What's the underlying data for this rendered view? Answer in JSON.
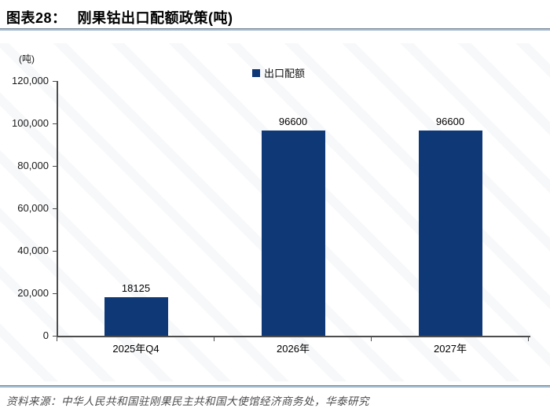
{
  "header": {
    "figure_label": "图表28：",
    "figure_title": "刚果钴出口配额政策(吨)"
  },
  "chart": {
    "unit_label": "(吨)",
    "legend_label": "出口配额"
  },
  "chart_data": {
    "type": "bar",
    "title": "刚果钴出口配额政策(吨)",
    "categories": [
      "2025年Q4",
      "2026年",
      "2027年"
    ],
    "series": [
      {
        "name": "出口配额",
        "values": [
          18125,
          96600,
          96600
        ]
      }
    ],
    "data_labels": [
      "18125",
      "96600",
      "96600"
    ],
    "ylabel": "(吨)",
    "ylim": [
      0,
      120000
    ],
    "ytick_step": 20000,
    "ytick_labels": [
      "0",
      "20,000",
      "40,000",
      "60,000",
      "80,000",
      "100,000",
      "120,000"
    ],
    "grid": false,
    "legend_position": "top-center",
    "bar_color": "#0E3876"
  },
  "footer": {
    "source": "资料来源：中华人民共和国驻刚果民主共和国大使馆经济商务处，华泰研究"
  },
  "colors": {
    "bar": "#0E3876",
    "axis": "#4d4d4d",
    "rule_dark": "#6e8191",
    "rule_light": "#a9bfd3",
    "source_text": "#4d4d4d"
  }
}
